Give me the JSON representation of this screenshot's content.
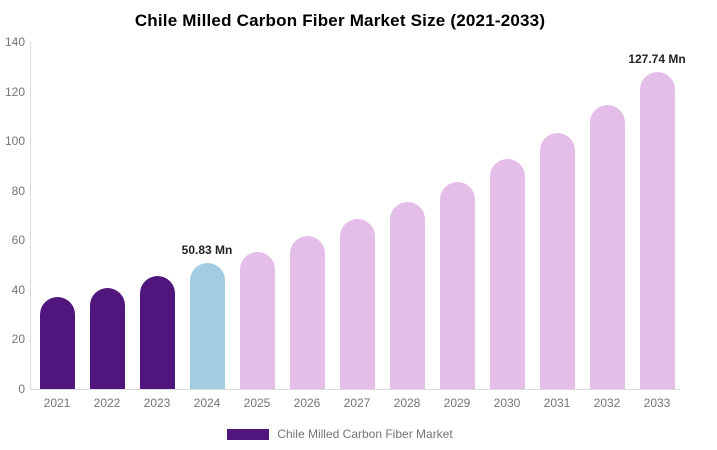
{
  "title": "Chile Milled Carbon Fiber Market Size (2021-2033)",
  "chart_data": {
    "type": "bar",
    "title": "Chile Milled Carbon Fiber Market Size (2021-2033)",
    "categories": [
      "2021",
      "2022",
      "2023",
      "2024",
      "2025",
      "2026",
      "2027",
      "2028",
      "2029",
      "2030",
      "2031",
      "2032",
      "2033"
    ],
    "values": [
      37.2,
      40.6,
      45.6,
      50.83,
      55.3,
      61.7,
      68.5,
      75.6,
      83.5,
      92.8,
      103.4,
      114.6,
      127.74
    ],
    "values_unit": "Mn",
    "bar_colors": [
      "#50167D",
      "#50167D",
      "#50167D",
      "#A3CBE1",
      "#E5BDE9",
      "#E5BDE9",
      "#E5BDE9",
      "#E5BDE9",
      "#E5BDE9",
      "#E5BDE9",
      "#E5BDE9",
      "#E5BDE9",
      "#E5BDE9"
    ],
    "labeled_points": [
      {
        "category": "2024",
        "label": "50.83 Mn"
      },
      {
        "category": "2033",
        "label": "127.74 Mn"
      }
    ],
    "xlabel": "",
    "ylabel": "",
    "ylim": [
      0,
      140
    ],
    "yticks": [
      0,
      20,
      40,
      60,
      80,
      100,
      120,
      140
    ],
    "grid": false,
    "legend": {
      "label": "Chile Milled Carbon Fiber Market",
      "swatch_color": "#50167D",
      "position": "bottom"
    },
    "colors": {
      "historical_bar": "#50167D",
      "current_year_bar": "#A3CBE1",
      "forecast_bar": "#E5BDE9",
      "axis_line": "#dcdcdc",
      "tick_text": "#757575",
      "title_text": "#000000",
      "value_label_text": "#222222"
    }
  }
}
